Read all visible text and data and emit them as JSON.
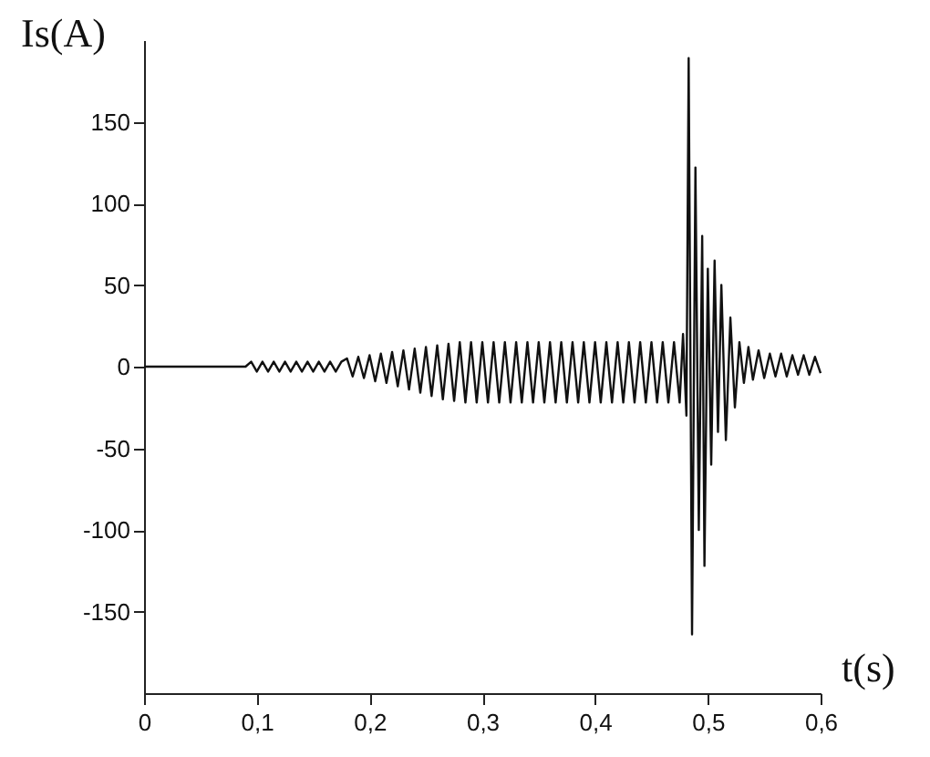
{
  "chart_data": {
    "type": "line",
    "xlabel": "t(s)",
    "ylabel": "Is(A)",
    "xlim": [
      0,
      0.6
    ],
    "ylim": [
      -200,
      200
    ],
    "xticks": [
      0,
      {
        "value": 0.1,
        "label": "0,1"
      },
      {
        "value": 0.2,
        "label": "0,2"
      },
      {
        "value": 0.3,
        "label": "0,3"
      },
      {
        "value": 0.4,
        "label": "0,4"
      },
      {
        "value": 0.5,
        "label": "0,5"
      },
      {
        "value": 0.6,
        "label": "0,6"
      }
    ],
    "yticks": [
      -150,
      -100,
      -50,
      0,
      50,
      100,
      150
    ],
    "grid": false,
    "marker": "none",
    "line_style": "solid",
    "series": [
      {
        "color": "#111111",
        "x": [
          0,
          0.09,
          0.095,
          0.1,
          0.105,
          0.11,
          0.115,
          0.12,
          0.125,
          0.13,
          0.135,
          0.14,
          0.145,
          0.15,
          0.155,
          0.16,
          0.165,
          0.17,
          0.175,
          0.18,
          0.185,
          0.19,
          0.195,
          0.2,
          0.205,
          0.21,
          0.215,
          0.22,
          0.225,
          0.23,
          0.235,
          0.24,
          0.245,
          0.25,
          0.255,
          0.26,
          0.265,
          0.27,
          0.275,
          0.28,
          0.285,
          0.29,
          0.295,
          0.3,
          0.305,
          0.31,
          0.315,
          0.32,
          0.325,
          0.33,
          0.335,
          0.34,
          0.345,
          0.35,
          0.355,
          0.36,
          0.365,
          0.37,
          0.375,
          0.38,
          0.385,
          0.39,
          0.395,
          0.4,
          0.405,
          0.41,
          0.415,
          0.42,
          0.425,
          0.43,
          0.435,
          0.44,
          0.445,
          0.45,
          0.455,
          0.46,
          0.465,
          0.47,
          0.475,
          0.478,
          0.481,
          0.483,
          0.486,
          0.489,
          0.492,
          0.495,
          0.497,
          0.5,
          0.503,
          0.506,
          0.509,
          0.512,
          0.516,
          0.52,
          0.524,
          0.528,
          0.532,
          0.536,
          0.54,
          0.545,
          0.55,
          0.555,
          0.56,
          0.565,
          0.57,
          0.575,
          0.58,
          0.585,
          0.59,
          0.595,
          0.6
        ],
        "values": [
          0,
          0,
          3,
          -3,
          3,
          -3,
          3,
          -3,
          3,
          -3,
          3,
          -3,
          3,
          -3,
          3,
          -3,
          3,
          -3,
          3,
          5,
          -6,
          6,
          -7,
          7,
          -9,
          8,
          -10,
          9,
          -12,
          10,
          -14,
          11,
          -16,
          12,
          -18,
          13,
          -20,
          14,
          -21,
          15,
          -22,
          15,
          -22,
          15,
          -22,
          15,
          -22,
          15,
          -22,
          15,
          -22,
          15,
          -22,
          15,
          -22,
          15,
          -22,
          15,
          -22,
          15,
          -22,
          15,
          -22,
          15,
          -22,
          15,
          -22,
          15,
          -22,
          15,
          -22,
          15,
          -22,
          15,
          -22,
          15,
          -22,
          15,
          -22,
          20,
          -30,
          189,
          -164,
          122,
          -100,
          80,
          -122,
          60,
          -60,
          65,
          -40,
          50,
          -45,
          30,
          -25,
          15,
          -10,
          12,
          -8,
          10,
          -7,
          8,
          -6,
          8,
          -6,
          7,
          -5,
          7,
          -5,
          6,
          -4
        ]
      }
    ]
  }
}
